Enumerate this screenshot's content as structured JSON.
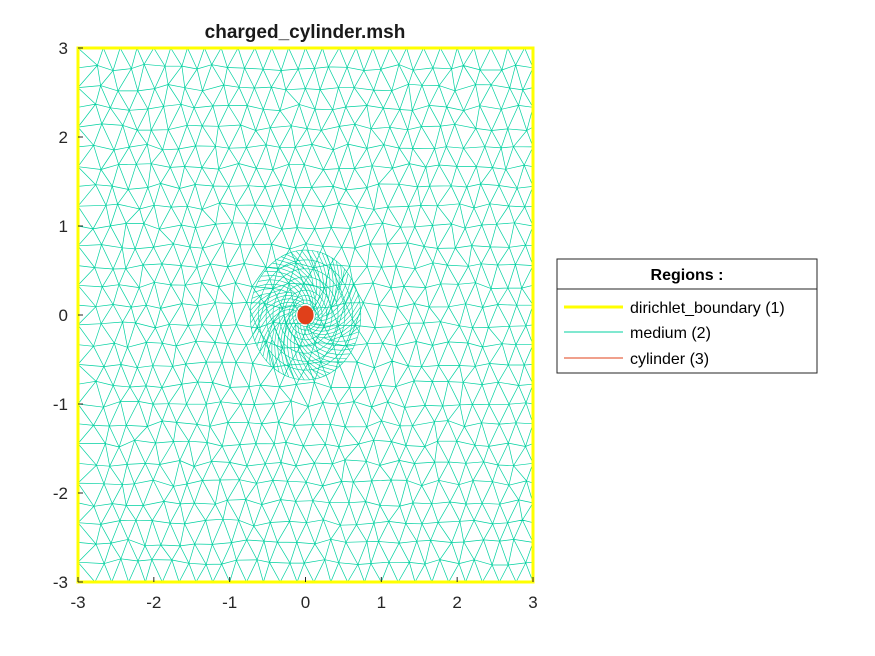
{
  "figure": {
    "title": "charged_cylinder.msh"
  },
  "axes": {
    "xlim": [
      -3,
      3
    ],
    "ylim": [
      -3,
      3
    ],
    "xticks": [
      -3,
      -2,
      -1,
      0,
      1,
      2,
      3
    ],
    "yticks": [
      -3,
      -2,
      -1,
      0,
      1,
      2,
      3
    ],
    "xtick_labels": [
      "-3",
      "-2",
      "-1",
      "0",
      "1",
      "2",
      "3"
    ],
    "ytick_labels": [
      "-3",
      "-2",
      "-1",
      "0",
      "1",
      "2",
      "3"
    ],
    "grid": false,
    "box": false
  },
  "legend": {
    "title": "Regions :",
    "placement": "right",
    "items": [
      {
        "label": "dirichlet_boundary (1)",
        "color": "#ffff00",
        "style": "thick-line"
      },
      {
        "label": "medium (2)",
        "color": "#00d1a0",
        "style": "line"
      },
      {
        "label": "cylinder (3)",
        "color": "#e0401a",
        "style": "line"
      }
    ]
  },
  "mesh": {
    "type": "triangular",
    "domain": {
      "x": [
        -3,
        3
      ],
      "y": [
        -3,
        3
      ]
    },
    "cylinder": {
      "center": [
        0,
        0
      ],
      "radius": 0.1
    },
    "colors": {
      "boundary": "#ffff00",
      "medium": "#00d1a0",
      "cylinder": "#e0401a"
    }
  }
}
